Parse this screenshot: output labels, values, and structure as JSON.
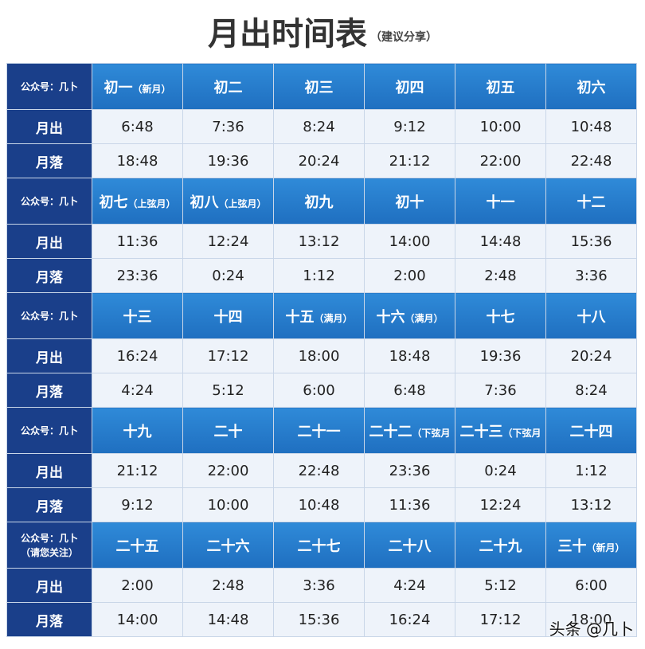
{
  "title": "月出时间表",
  "subtitle": "（建议分享）",
  "labels": {
    "header": "公众号：几卜",
    "header_last": "公众号：几卜",
    "header_last_note": "（请您关注）",
    "rise": "月出",
    "set": "月落"
  },
  "groups": [
    {
      "days": [
        {
          "name": "初一",
          "note": "（新月）"
        },
        {
          "name": "初二",
          "note": ""
        },
        {
          "name": "初三",
          "note": ""
        },
        {
          "name": "初四",
          "note": ""
        },
        {
          "name": "初五",
          "note": ""
        },
        {
          "name": "初六",
          "note": ""
        }
      ],
      "rise": [
        "6:48",
        "7:36",
        "8:24",
        "9:12",
        "10:00",
        "10:48"
      ],
      "set": [
        "18:48",
        "19:36",
        "20:24",
        "21:12",
        "22:00",
        "22:48"
      ]
    },
    {
      "days": [
        {
          "name": "初七",
          "note": "（上弦月）"
        },
        {
          "name": "初八",
          "note": "（上弦月）"
        },
        {
          "name": "初九",
          "note": ""
        },
        {
          "name": "初十",
          "note": ""
        },
        {
          "name": "十一",
          "note": ""
        },
        {
          "name": "十二",
          "note": ""
        }
      ],
      "rise": [
        "11:36",
        "12:24",
        "13:12",
        "14:00",
        "14:48",
        "15:36"
      ],
      "set": [
        "23:36",
        "0:24",
        "1:12",
        "2:00",
        "2:48",
        "3:36"
      ]
    },
    {
      "days": [
        {
          "name": "十三",
          "note": ""
        },
        {
          "name": "十四",
          "note": ""
        },
        {
          "name": "十五",
          "note": "（满月）"
        },
        {
          "name": "十六",
          "note": "（满月）"
        },
        {
          "name": "十七",
          "note": ""
        },
        {
          "name": "十八",
          "note": ""
        }
      ],
      "rise": [
        "16:24",
        "17:12",
        "18:00",
        "18:48",
        "19:36",
        "20:24"
      ],
      "set": [
        "4:24",
        "5:12",
        "6:00",
        "6:48",
        "7:36",
        "8:24"
      ]
    },
    {
      "days": [
        {
          "name": "十九",
          "note": ""
        },
        {
          "name": "二十",
          "note": ""
        },
        {
          "name": "二十一",
          "note": ""
        },
        {
          "name": "二十二",
          "note": "（下弦月"
        },
        {
          "name": "二十三",
          "note": "（下弦月"
        },
        {
          "name": "二十四",
          "note": ""
        }
      ],
      "rise": [
        "21:12",
        "22:00",
        "22:48",
        "23:36",
        "0:24",
        "1:12"
      ],
      "set": [
        "9:12",
        "10:00",
        "10:48",
        "11:36",
        "12:24",
        "13:12"
      ]
    },
    {
      "days": [
        {
          "name": "二十五",
          "note": ""
        },
        {
          "name": "二十六",
          "note": ""
        },
        {
          "name": "二十七",
          "note": ""
        },
        {
          "name": "二十八",
          "note": ""
        },
        {
          "name": "二十九",
          "note": ""
        },
        {
          "name": "三十",
          "note": "（新月）"
        }
      ],
      "rise": [
        "2:00",
        "2:48",
        "3:36",
        "4:24",
        "5:12",
        "6:00"
      ],
      "set": [
        "14:00",
        "14:48",
        "15:36",
        "16:24",
        "17:12",
        "18:00"
      ]
    }
  ],
  "watermark": "头条 @几卜"
}
